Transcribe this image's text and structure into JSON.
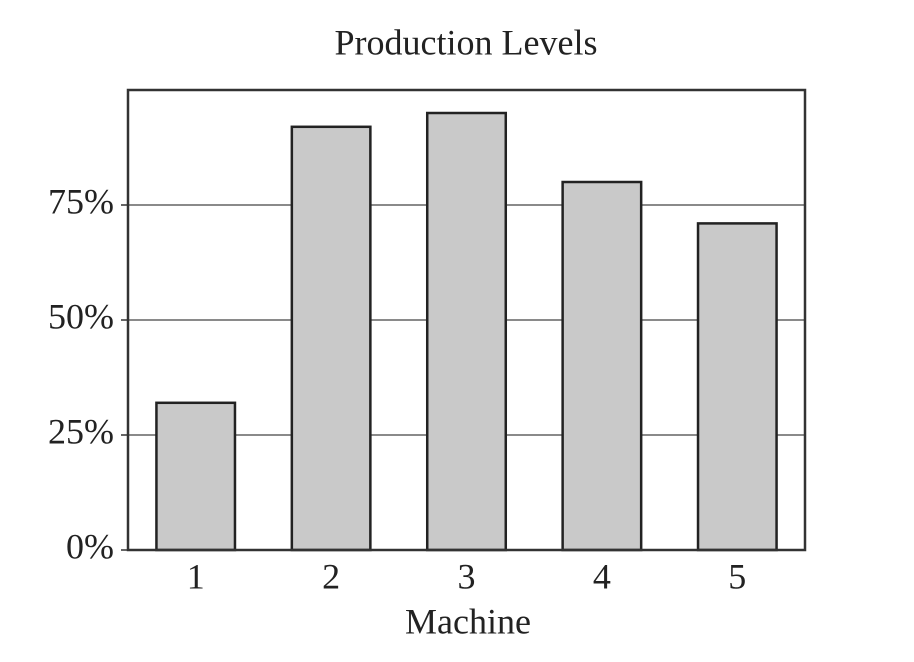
{
  "chart_data": {
    "type": "bar",
    "title": "Production Levels",
    "x_label": "Machine",
    "categories": [
      "1",
      "2",
      "3",
      "4",
      "5"
    ],
    "values": [
      32,
      92,
      95,
      80,
      71
    ],
    "color": "#c9c9c9",
    "ylim": [
      0,
      100
    ],
    "yticks": [
      {
        "value": 0,
        "label": "0%"
      },
      {
        "value": 25,
        "label": "25%"
      },
      {
        "value": 50,
        "label": "50%"
      },
      {
        "value": 75,
        "label": "75%"
      }
    ],
    "grid": true
  }
}
